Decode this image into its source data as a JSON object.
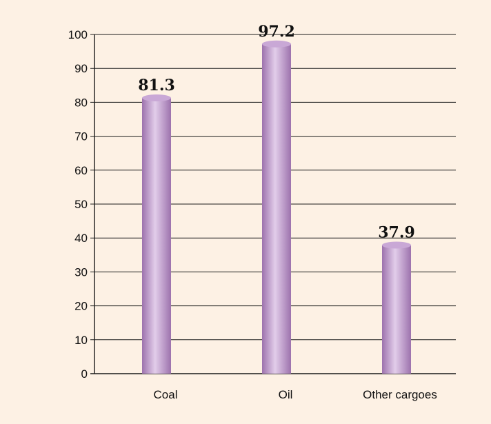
{
  "colors": {
    "background": "#fdf1e4",
    "grid": "#1a1a1a",
    "bar_light": "#e2cdea",
    "bar_dark": "#9d72ad",
    "bar_top": "#c9a8d6"
  },
  "chart_data": {
    "type": "bar",
    "title": "",
    "xlabel": "",
    "ylabel": "",
    "categories": [
      "Coal",
      "Oil",
      "Other cargoes"
    ],
    "values": [
      81.3,
      97.2,
      37.9
    ],
    "value_labels": [
      "81.3",
      "97.2",
      "37.9"
    ],
    "ylim": [
      0,
      100
    ],
    "yticks": [
      "0",
      "10",
      "20",
      "30",
      "40",
      "50",
      "60",
      "70",
      "80",
      "90",
      "100"
    ],
    "grid": true,
    "legend": "none"
  }
}
